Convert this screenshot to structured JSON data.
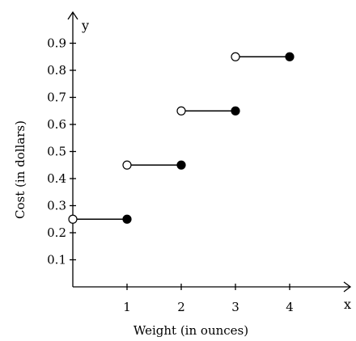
{
  "chart_data": {
    "type": "line",
    "title": "",
    "xlabel": "Weight (in ounces)",
    "ylabel": "Cost (in dollars)",
    "x_axis_letter": "x",
    "y_axis_letter": "y",
    "xlim": [
      0,
      4.9
    ],
    "ylim": [
      0,
      0.98
    ],
    "x_ticks": [
      1,
      2,
      3,
      4
    ],
    "x_tick_labels": [
      "1",
      "2",
      "3",
      "4"
    ],
    "y_ticks": [
      0.1,
      0.2,
      0.3,
      0.4,
      0.5,
      0.6,
      0.7,
      0.8,
      0.9
    ],
    "y_tick_labels": [
      "0.1",
      "0.2",
      "0.3",
      "0.4",
      "0.5",
      "0.6",
      "0.7",
      "0.8",
      "0.9"
    ],
    "grid": false,
    "series": [
      {
        "style": "step-function",
        "segments": [
          {
            "x_start": 0,
            "x_end": 1,
            "y": 0.25,
            "start_closed": false,
            "end_closed": true
          },
          {
            "x_start": 1,
            "x_end": 2,
            "y": 0.45,
            "start_closed": false,
            "end_closed": true
          },
          {
            "x_start": 2,
            "x_end": 3,
            "y": 0.65,
            "start_closed": false,
            "end_closed": true
          },
          {
            "x_start": 3,
            "x_end": 4,
            "y": 0.85,
            "start_closed": false,
            "end_closed": true
          }
        ]
      }
    ]
  }
}
